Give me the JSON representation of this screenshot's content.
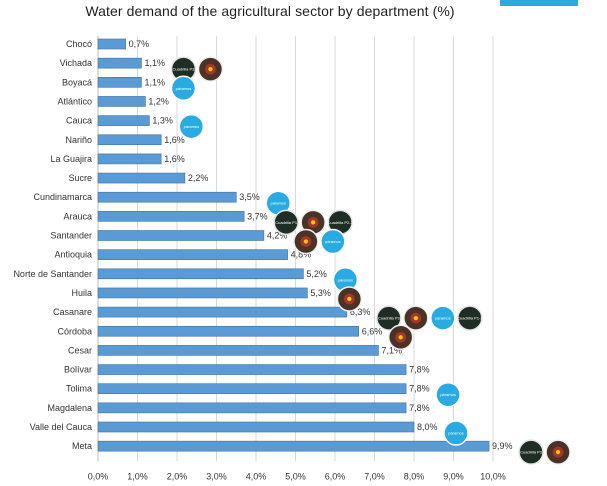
{
  "header": {
    "title": "Water demand of the agricultural sector by department (%)",
    "accent_color": "#29abe2"
  },
  "chart_data": {
    "type": "bar",
    "orientation": "horizontal",
    "title": "Water demand of the agricultural sector by department (%)",
    "xlabel": "",
    "ylabel": "",
    "xlim": [
      0,
      10
    ],
    "grid": true,
    "bar_color": "#5b9bd5",
    "categories": [
      "Chocó",
      "Vichada",
      "Boyacá",
      "Atlántico",
      "Cauca",
      "Nariño",
      "La Guajira",
      "Sucre",
      "Cundinamarca",
      "Arauca",
      "Santander",
      "Antioquia",
      "Norte de Santander",
      "Huila",
      "Casanare",
      "Córdoba",
      "Cesar",
      "Bolívar",
      "Tolima",
      "Magdalena",
      "Valle del Cauca",
      "Meta"
    ],
    "values": [
      0.7,
      1.1,
      1.1,
      1.2,
      1.3,
      1.6,
      1.6,
      2.2,
      3.5,
      3.7,
      4.2,
      4.8,
      5.2,
      5.3,
      6.3,
      6.6,
      7.1,
      7.8,
      7.8,
      7.8,
      8.0,
      9.9
    ],
    "value_labels": [
      "0,7%",
      "1,1%",
      "1,1%",
      "1,2%",
      "1,3%",
      "1,6%",
      "1,6%",
      "2,2%",
      "3,5%",
      "3,7%",
      "4,2%",
      "4,8%",
      "5,2%",
      "5,3%",
      "6,3%",
      "6,6%",
      "7,1%",
      "7,8%",
      "7,8%",
      "7,8%",
      "8,0%",
      "9,9%"
    ],
    "x_ticks": [
      0,
      1,
      2,
      3,
      4,
      5,
      6,
      7,
      8,
      9,
      10
    ],
    "x_tick_labels": [
      "0,0%",
      "1,0%",
      "2,0%",
      "3,0%",
      "4,0%",
      "5,0%",
      "6,0%",
      "7,0%",
      "8,0%",
      "9,0%",
      "10,0%"
    ],
    "badges": [
      {
        "category": "Vichada",
        "style": "dark",
        "text": "Cuadrilla P3"
      },
      {
        "category": "Vichada",
        "style": "photo",
        "text": ""
      },
      {
        "category": "Boyacá",
        "style": "blue",
        "text": "páramos"
      },
      {
        "category": "Cauca",
        "style": "blue",
        "text": "páramos"
      },
      {
        "category": "Cundinamarca",
        "style": "blue",
        "text": "páramos"
      },
      {
        "category": "Arauca",
        "style": "dark",
        "text": "Cuadrilla P1"
      },
      {
        "category": "Arauca",
        "style": "photo",
        "text": ""
      },
      {
        "category": "Arauca",
        "style": "dark",
        "text": "Cuadrilla P2-3"
      },
      {
        "category": "Santander",
        "style": "photo",
        "text": ""
      },
      {
        "category": "Santander",
        "style": "blue",
        "text": "páramos"
      },
      {
        "category": "Norte de Santander",
        "style": "blue",
        "text": "páramos"
      },
      {
        "category": "Huila",
        "style": "photo",
        "text": ""
      },
      {
        "category": "Casanare",
        "style": "dark",
        "text": "Cuadrilla P3"
      },
      {
        "category": "Casanare",
        "style": "photo",
        "text": ""
      },
      {
        "category": "Casanare",
        "style": "blue",
        "text": "páramos"
      },
      {
        "category": "Casanare",
        "style": "dark",
        "text": "Cuadrilla P1-3"
      },
      {
        "category": "Córdoba",
        "style": "photo",
        "text": ""
      },
      {
        "category": "Tolima",
        "style": "blue",
        "text": "páramos"
      },
      {
        "category": "Valle del Cauca",
        "style": "blue",
        "text": "páramos"
      },
      {
        "category": "Meta",
        "style": "dark",
        "text": "Cuadrilla P3"
      },
      {
        "category": "Meta",
        "style": "photo",
        "text": ""
      }
    ]
  }
}
